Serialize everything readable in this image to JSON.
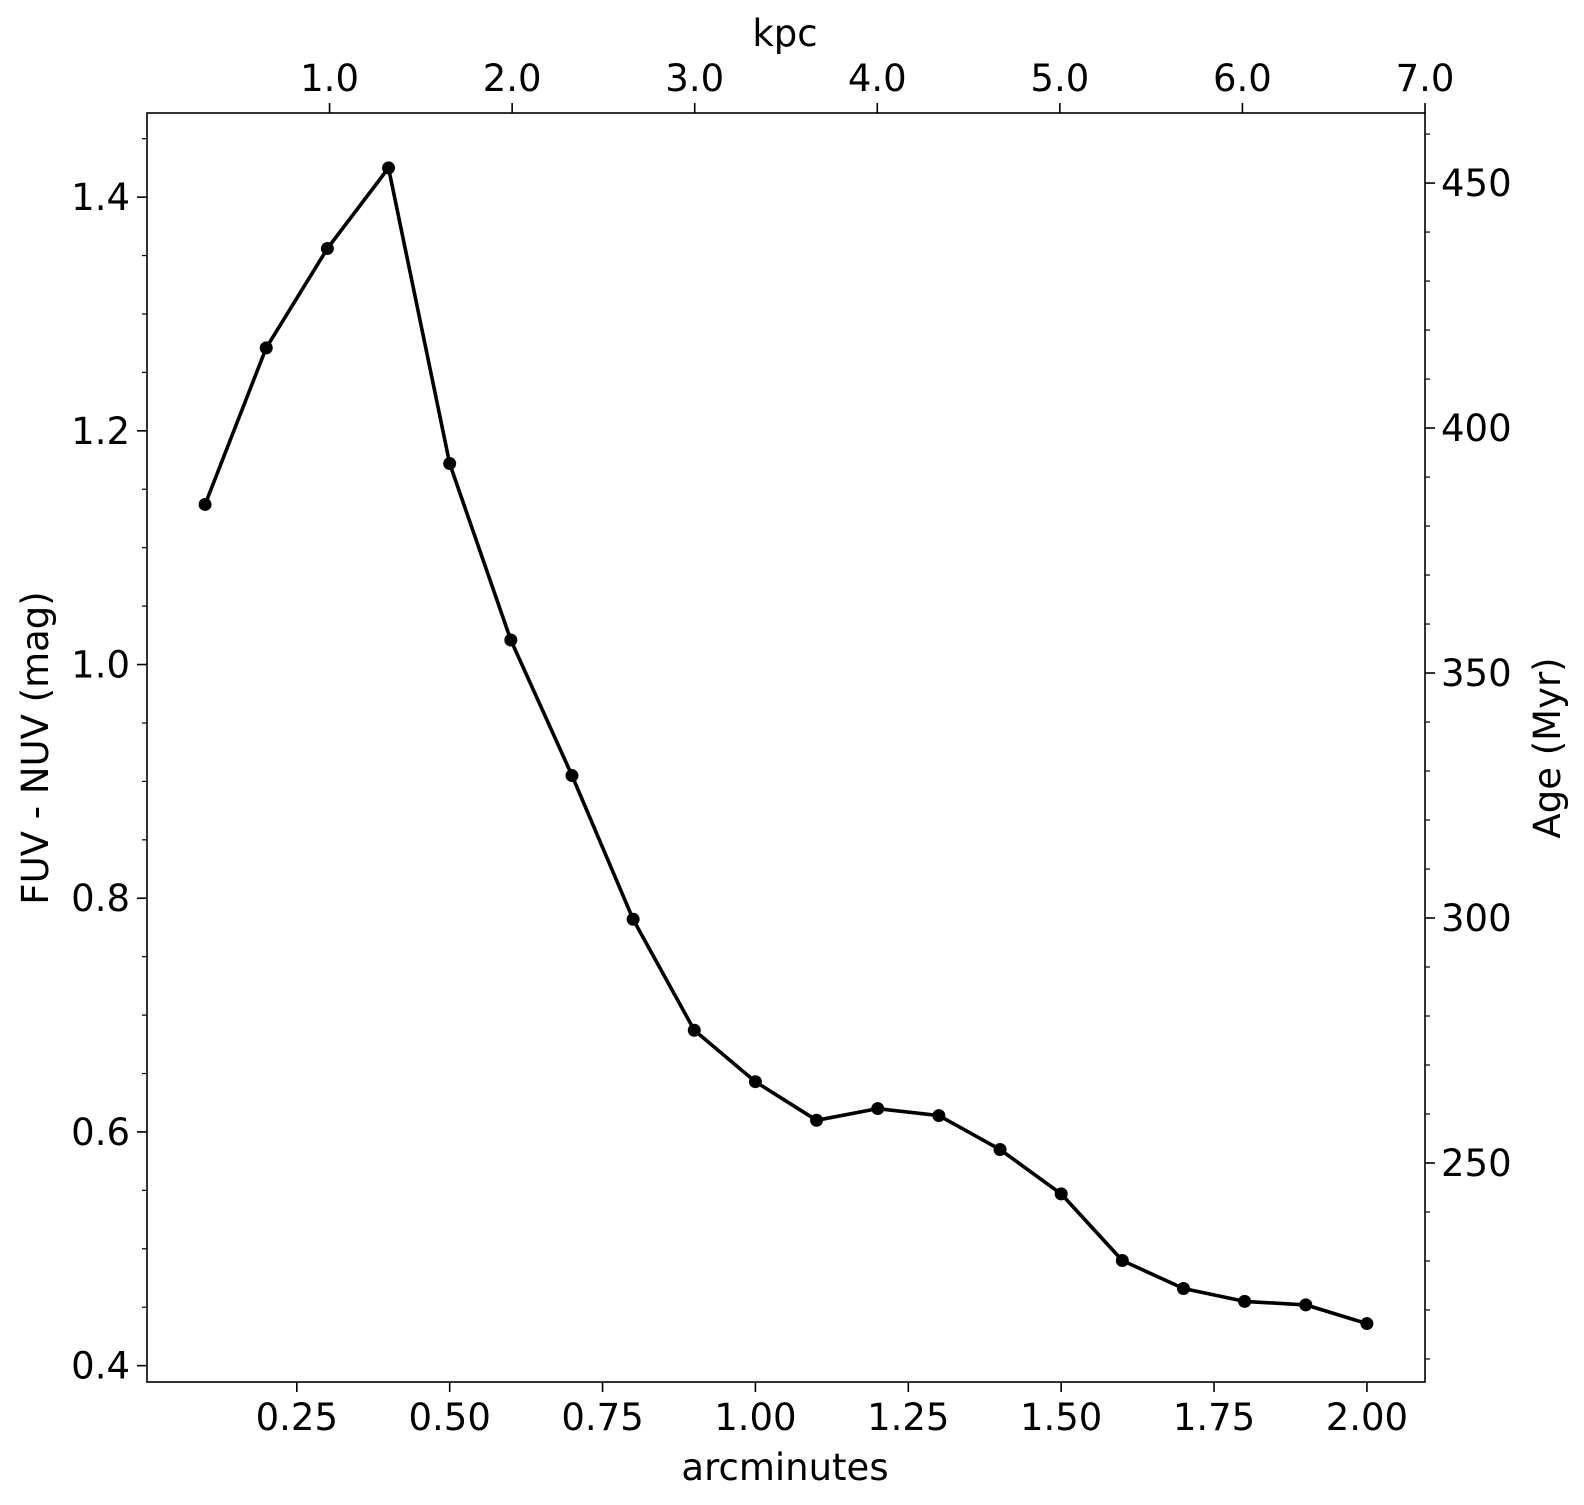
{
  "chart_data": {
    "type": "line",
    "xlabel": "arcminutes",
    "ylabel": "FUV - NUV (mag)",
    "top_xlabel": "kpc",
    "right_ylabel": "Age (Myr)",
    "xlim": [
      0.005,
      2.095
    ],
    "ylim": [
      0.386,
      1.472
    ],
    "right_ylim": [
      205.3,
      464.3
    ],
    "top_xlim": [
      0.0,
      7.0
    ],
    "x_ticks": [
      0.25,
      0.5,
      0.75,
      1.0,
      1.25,
      1.5,
      1.75,
      2.0
    ],
    "x_tick_labels": [
      "0.25",
      "0.50",
      "0.75",
      "1.00",
      "1.25",
      "1.50",
      "1.75",
      "2.00"
    ],
    "y_ticks": [
      0.4,
      0.6,
      0.8,
      1.0,
      1.2,
      1.4
    ],
    "y_tick_labels": [
      "0.4",
      "0.6",
      "0.8",
      "1.0",
      "1.2",
      "1.4"
    ],
    "right_y_ticks": [
      250,
      300,
      350,
      400,
      450
    ],
    "right_y_tick_labels": [
      "250",
      "300",
      "350",
      "400",
      "450"
    ],
    "top_x_ticks": [
      1.0,
      2.0,
      3.0,
      4.0,
      5.0,
      6.0,
      7.0
    ],
    "top_x_tick_labels": [
      "1.0",
      "2.0",
      "3.0",
      "4.0",
      "5.0",
      "6.0",
      "7.0"
    ],
    "grid": false,
    "legend": "none",
    "line_color": "#000000",
    "x": [
      0.1,
      0.2,
      0.3,
      0.4,
      0.5,
      0.6,
      0.7,
      0.8,
      0.9,
      1.0,
      1.1,
      1.2,
      1.3,
      1.4,
      1.5,
      1.6,
      1.7,
      1.8,
      1.9,
      2.0
    ],
    "series": [
      {
        "values": [
          1.137,
          1.271,
          1.356,
          1.425,
          1.172,
          1.021,
          0.905,
          0.782,
          0.687,
          0.643,
          0.61,
          0.62,
          0.614,
          0.585,
          0.547,
          0.49,
          0.466,
          0.455,
          0.452,
          0.436
        ]
      }
    ]
  }
}
